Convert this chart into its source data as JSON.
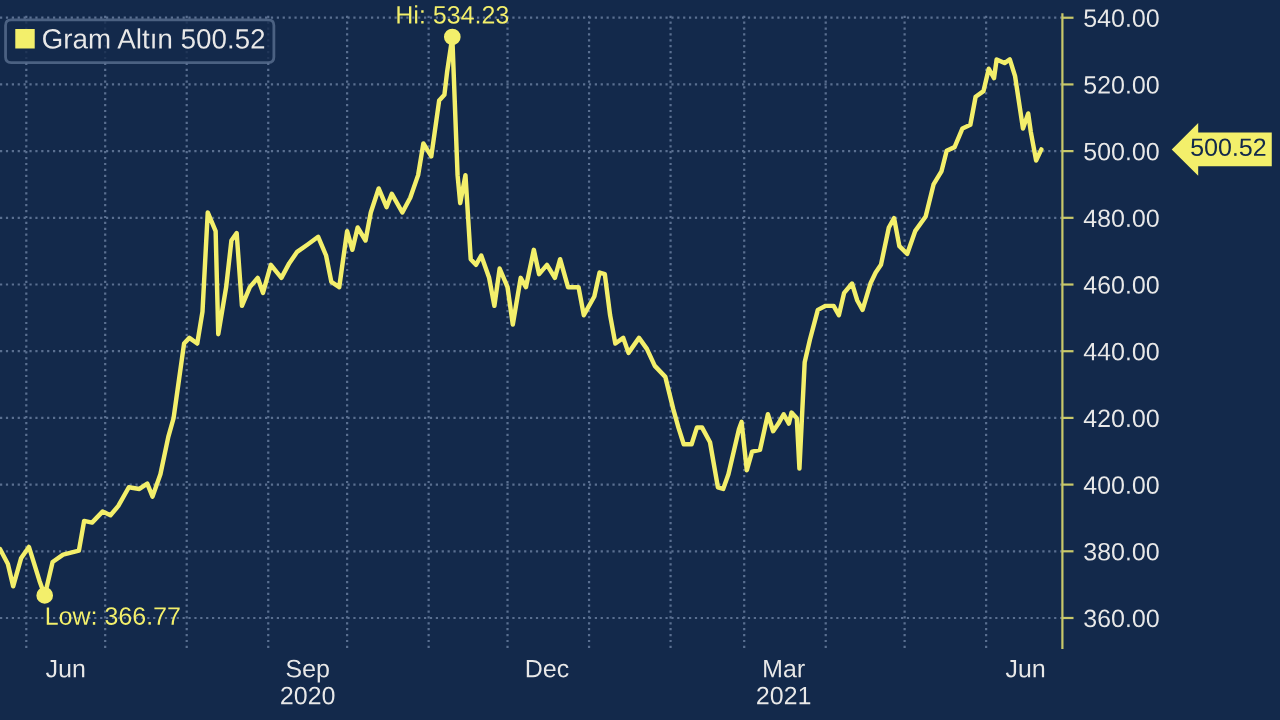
{
  "chart_data": {
    "type": "line",
    "x": [
      "2020-05-22",
      "2020-05-25",
      "2020-05-27",
      "2020-05-30",
      "2020-06-02",
      "2020-06-06",
      "2020-06-08",
      "2020-06-11",
      "2020-06-15",
      "2020-06-18",
      "2020-06-21",
      "2020-06-23",
      "2020-06-26",
      "2020-06-30",
      "2020-07-03",
      "2020-07-06",
      "2020-07-10",
      "2020-07-14",
      "2020-07-17",
      "2020-07-19",
      "2020-07-22",
      "2020-07-25",
      "2020-07-27",
      "2020-07-29",
      "2020-07-31",
      "2020-08-02",
      "2020-08-05",
      "2020-08-07",
      "2020-08-09",
      "2020-08-12",
      "2020-08-13",
      "2020-08-16",
      "2020-08-18",
      "2020-08-20",
      "2020-08-22",
      "2020-08-25",
      "2020-08-28",
      "2020-08-30",
      "2020-09-02",
      "2020-09-06",
      "2020-09-09",
      "2020-09-12",
      "2020-09-16",
      "2020-09-20",
      "2020-09-23",
      "2020-09-25",
      "2020-09-28",
      "2020-10-01",
      "2020-10-03",
      "2020-10-05",
      "2020-10-08",
      "2020-10-10",
      "2020-10-13",
      "2020-10-16",
      "2020-10-18",
      "2020-10-22",
      "2020-10-25",
      "2020-10-28",
      "2020-10-30",
      "2020-11-02",
      "2020-11-05",
      "2020-11-07",
      "2020-11-08",
      "2020-11-10",
      "2020-11-12",
      "2020-11-13",
      "2020-11-15",
      "2020-11-17",
      "2020-11-19",
      "2020-11-21",
      "2020-11-24",
      "2020-11-26",
      "2020-11-28",
      "2020-12-01",
      "2020-12-03",
      "2020-12-06",
      "2020-12-08",
      "2020-12-11",
      "2020-12-13",
      "2020-12-16",
      "2020-12-19",
      "2020-12-21",
      "2020-12-24",
      "2020-12-28",
      "2020-12-30",
      "2021-01-03",
      "2021-01-05",
      "2021-01-07",
      "2021-01-09",
      "2021-01-11",
      "2021-01-14",
      "2021-01-16",
      "2021-01-20",
      "2021-01-23",
      "2021-01-26",
      "2021-01-30",
      "2021-02-02",
      "2021-02-04",
      "2021-02-06",
      "2021-02-09",
      "2021-02-11",
      "2021-02-13",
      "2021-02-16",
      "2021-02-19",
      "2021-02-21",
      "2021-02-23",
      "2021-02-27",
      "2021-02-28",
      "2021-03-02",
      "2021-03-04",
      "2021-03-07",
      "2021-03-10",
      "2021-03-12",
      "2021-03-14",
      "2021-03-16",
      "2021-03-18",
      "2021-03-19",
      "2021-03-21",
      "2021-03-22",
      "2021-03-24",
      "2021-03-26",
      "2021-03-29",
      "2021-04-01",
      "2021-04-04",
      "2021-04-06",
      "2021-04-08",
      "2021-04-11",
      "2021-04-13",
      "2021-04-15",
      "2021-04-18",
      "2021-04-20",
      "2021-04-22",
      "2021-04-25",
      "2021-04-27",
      "2021-04-29",
      "2021-05-02",
      "2021-05-05",
      "2021-05-09",
      "2021-05-12",
      "2021-05-15",
      "2021-05-17",
      "2021-05-20",
      "2021-05-23",
      "2021-05-26",
      "2021-05-28",
      "2021-05-31",
      "2021-06-02",
      "2021-06-04",
      "2021-06-05",
      "2021-06-08",
      "2021-06-10",
      "2021-06-12",
      "2021-06-15",
      "2021-06-17",
      "2021-06-18",
      "2021-06-20",
      "2021-06-22"
    ],
    "series": [
      {
        "name": "Gram Altın 500.52",
        "color": "#f3ef6b",
        "values": [
          380.7,
          376.2,
          369.5,
          377.9,
          381.3,
          371.2,
          366.77,
          376.8,
          379.0,
          379.6,
          380.2,
          389.1,
          388.6,
          391.9,
          390.8,
          393.6,
          399.2,
          398.7,
          400.3,
          396.4,
          403.1,
          414.3,
          419.9,
          431.1,
          442.3,
          444.0,
          442.3,
          451.9,
          481.6,
          476.0,
          445.1,
          459.2,
          473.2,
          475.4,
          453.6,
          459.2,
          462.0,
          457.5,
          465.9,
          462.0,
          466.4,
          469.8,
          472.0,
          474.3,
          468.7,
          460.8,
          459.2,
          476.0,
          470.4,
          477.1,
          473.2,
          481.6,
          488.8,
          483.2,
          487.2,
          481.6,
          486.0,
          492.8,
          502.3,
          498.4,
          515.2,
          516.9,
          523.6,
          534.23,
          492.8,
          484.4,
          492.8,
          467.6,
          465.9,
          468.7,
          462.0,
          453.6,
          464.8,
          459.2,
          448.0,
          462.0,
          459.2,
          470.4,
          463.1,
          465.9,
          462.0,
          467.6,
          459.2,
          459.2,
          450.8,
          456.4,
          463.6,
          463.1,
          450.8,
          442.3,
          444.0,
          439.5,
          444.0,
          440.7,
          435.6,
          432.3,
          422.7,
          417.1,
          412.1,
          412.1,
          417.1,
          417.1,
          412.7,
          399.2,
          398.7,
          403.1,
          416.6,
          418.8,
          404.3,
          409.9,
          410.4,
          421.1,
          416.0,
          418.3,
          421.1,
          418.3,
          421.6,
          419.9,
          404.8,
          436.7,
          443.5,
          452.4,
          453.6,
          453.6,
          450.8,
          457.5,
          460.3,
          455.2,
          452.4,
          460.3,
          463.6,
          465.9,
          477.1,
          479.9,
          471.5,
          469.2,
          476.0,
          480.4,
          490.0,
          493.9,
          500.1,
          501.2,
          506.8,
          507.9,
          516.3,
          518.0,
          524.7,
          521.9,
          527.5,
          526.4,
          527.5,
          522.5,
          506.8,
          511.3,
          505.7,
          497.2,
          500.52
        ]
      }
    ],
    "xlim": [
      "2020-05-22",
      "2021-06-30"
    ],
    "xticks": [
      {
        "value": "2020-06-01",
        "label": null
      },
      {
        "value": "2020-06-16",
        "label": "Jun"
      },
      {
        "value": "2020-07-01",
        "label": null
      },
      {
        "value": "2020-08-01",
        "label": null
      },
      {
        "value": "2020-09-01",
        "label": null
      },
      {
        "value": "2020-09-16",
        "label": "Sep\n2020"
      },
      {
        "value": "2020-10-01",
        "label": null
      },
      {
        "value": "2020-11-01",
        "label": null
      },
      {
        "value": "2020-12-01",
        "label": null
      },
      {
        "value": "2020-12-16",
        "label": "Dec"
      },
      {
        "value": "2021-01-01",
        "label": null
      },
      {
        "value": "2021-02-01",
        "label": null
      },
      {
        "value": "2021-03-01",
        "label": null
      },
      {
        "value": "2021-03-16",
        "label": "Mar\n2021"
      },
      {
        "value": "2021-04-01",
        "label": null
      },
      {
        "value": "2021-05-01",
        "label": null
      },
      {
        "value": "2021-06-01",
        "label": null
      },
      {
        "value": "2021-06-16",
        "label": "Jun"
      }
    ],
    "ylim": [
      351,
      541
    ],
    "yticks": [
      {
        "value": 360,
        "label": "360.00"
      },
      {
        "value": 380,
        "label": "380.00"
      },
      {
        "value": 400,
        "label": "400.00"
      },
      {
        "value": 420,
        "label": "420.00"
      },
      {
        "value": 440,
        "label": "440.00"
      },
      {
        "value": 460,
        "label": "460.00"
      },
      {
        "value": 480,
        "label": "480.00"
      },
      {
        "value": 500,
        "label": "500.00"
      },
      {
        "value": 520,
        "label": "520.00"
      },
      {
        "value": 540,
        "label": "540.00"
      }
    ],
    "grid": true,
    "legend": "top left",
    "annotations": [
      {
        "text": "Hi: 534.23",
        "x": "2020-11-10",
        "y": 534.23
      },
      {
        "text": "Low: 366.77",
        "x": "2020-06-08",
        "y": 366.77
      },
      "500.52"
    ]
  }
}
